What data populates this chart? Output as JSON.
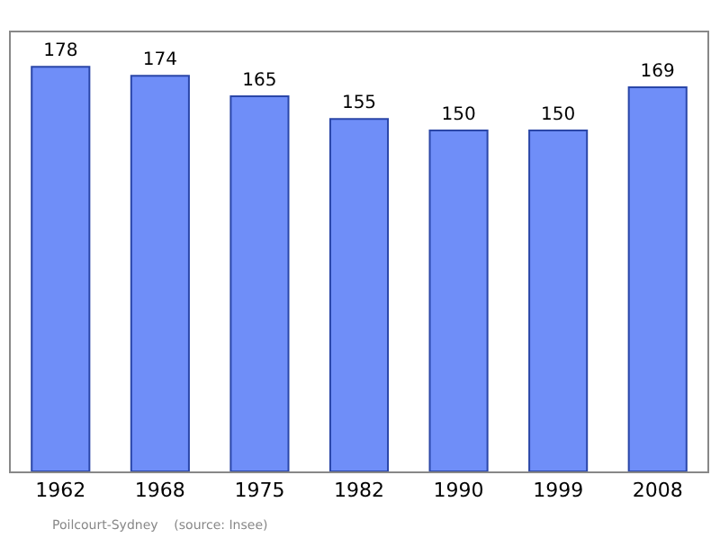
{
  "chart_data": {
    "type": "bar",
    "categories": [
      "1962",
      "1968",
      "1975",
      "1982",
      "1990",
      "1999",
      "2008"
    ],
    "values": [
      178,
      174,
      165,
      155,
      150,
      150,
      169
    ],
    "color": "#6f8ef8",
    "data_labels": true,
    "grid": false,
    "legend": false,
    "annotations": [
      "Poilcourt-Sydney    (source: Insee)"
    ]
  }
}
